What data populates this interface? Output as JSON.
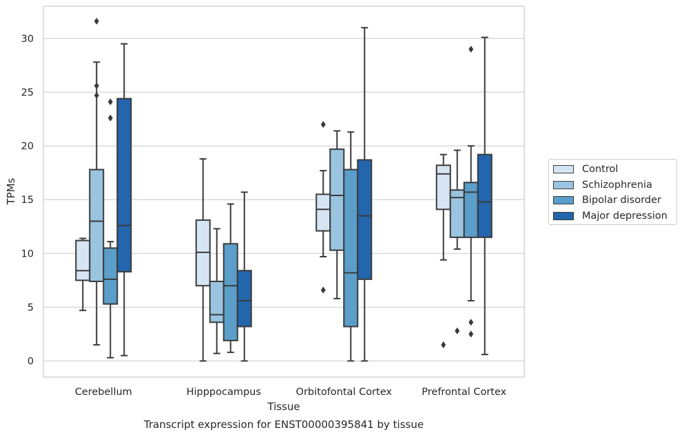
{
  "chart_data": {
    "type": "boxplot",
    "title": "Transcript expression for ENST00000395841 by tissue",
    "xlabel": "Tissue",
    "ylabel": "TPMs",
    "ylim": [
      -1.5,
      33
    ],
    "yticks": [
      0,
      5,
      10,
      15,
      20,
      25,
      30
    ],
    "grid": "horizontal",
    "legend_position": "right",
    "categories": [
      "Cerebellum",
      "Hipppocampus",
      "Orbitofontal Cortex",
      "Prefrontal Cortex"
    ],
    "series": [
      {
        "name": "Control",
        "color": "#d6e5f4",
        "boxes": [
          {
            "whisker_low": 4.7,
            "q1": 7.5,
            "median": 8.4,
            "q3": 11.2,
            "whisker_high": 11.4,
            "outliers": []
          },
          {
            "whisker_low": 0.0,
            "q1": 7.0,
            "median": 10.1,
            "q3": 13.1,
            "whisker_high": 18.8,
            "outliers": []
          },
          {
            "whisker_low": 9.7,
            "q1": 12.1,
            "median": 14.1,
            "q3": 15.5,
            "whisker_high": 17.7,
            "outliers": [
              22.0,
              6.6
            ]
          },
          {
            "whisker_low": 9.4,
            "q1": 14.1,
            "median": 17.4,
            "q3": 18.2,
            "whisker_high": 19.2,
            "outliers": [
              1.5
            ]
          }
        ]
      },
      {
        "name": "Schizophrenia",
        "color": "#9ac4e0",
        "boxes": [
          {
            "whisker_low": 1.5,
            "q1": 7.4,
            "median": 13.0,
            "q3": 17.8,
            "whisker_high": 27.8,
            "outliers": [
              31.6,
              25.6,
              24.7
            ]
          },
          {
            "whisker_low": 0.7,
            "q1": 3.6,
            "median": 4.3,
            "q3": 7.4,
            "whisker_high": 12.3,
            "outliers": []
          },
          {
            "whisker_low": 5.8,
            "q1": 10.3,
            "median": 15.4,
            "q3": 19.7,
            "whisker_high": 21.4,
            "outliers": []
          },
          {
            "whisker_low": 10.4,
            "q1": 11.5,
            "median": 15.2,
            "q3": 15.9,
            "whisker_high": 19.6,
            "outliers": [
              2.8
            ]
          }
        ]
      },
      {
        "name": "Bipolar disorder",
        "color": "#5a9ec9",
        "boxes": [
          {
            "whisker_low": 0.3,
            "q1": 5.3,
            "median": 7.6,
            "q3": 10.5,
            "whisker_high": 11.1,
            "outliers": [
              24.1,
              22.6
            ]
          },
          {
            "whisker_low": 0.8,
            "q1": 1.9,
            "median": 7.0,
            "q3": 10.9,
            "whisker_high": 14.6,
            "outliers": []
          },
          {
            "whisker_low": 0.0,
            "q1": 3.2,
            "median": 8.2,
            "q3": 17.8,
            "whisker_high": 21.3,
            "outliers": []
          },
          {
            "whisker_low": 5.6,
            "q1": 11.5,
            "median": 15.7,
            "q3": 16.6,
            "whisker_high": 20.0,
            "outliers": [
              29.0,
              3.6,
              2.5
            ]
          }
        ]
      },
      {
        "name": "Major depression",
        "color": "#2366ad",
        "boxes": [
          {
            "whisker_low": 0.5,
            "q1": 8.3,
            "median": 12.6,
            "q3": 24.4,
            "whisker_high": 29.5,
            "outliers": []
          },
          {
            "whisker_low": 0.0,
            "q1": 3.2,
            "median": 5.6,
            "q3": 8.4,
            "whisker_high": 15.7,
            "outliers": []
          },
          {
            "whisker_low": 0.0,
            "q1": 7.6,
            "median": 13.5,
            "q3": 18.7,
            "whisker_high": 31.0,
            "outliers": []
          },
          {
            "whisker_low": 0.6,
            "q1": 11.5,
            "median": 14.8,
            "q3": 19.2,
            "whisker_high": 30.1,
            "outliers": []
          }
        ]
      }
    ]
  }
}
